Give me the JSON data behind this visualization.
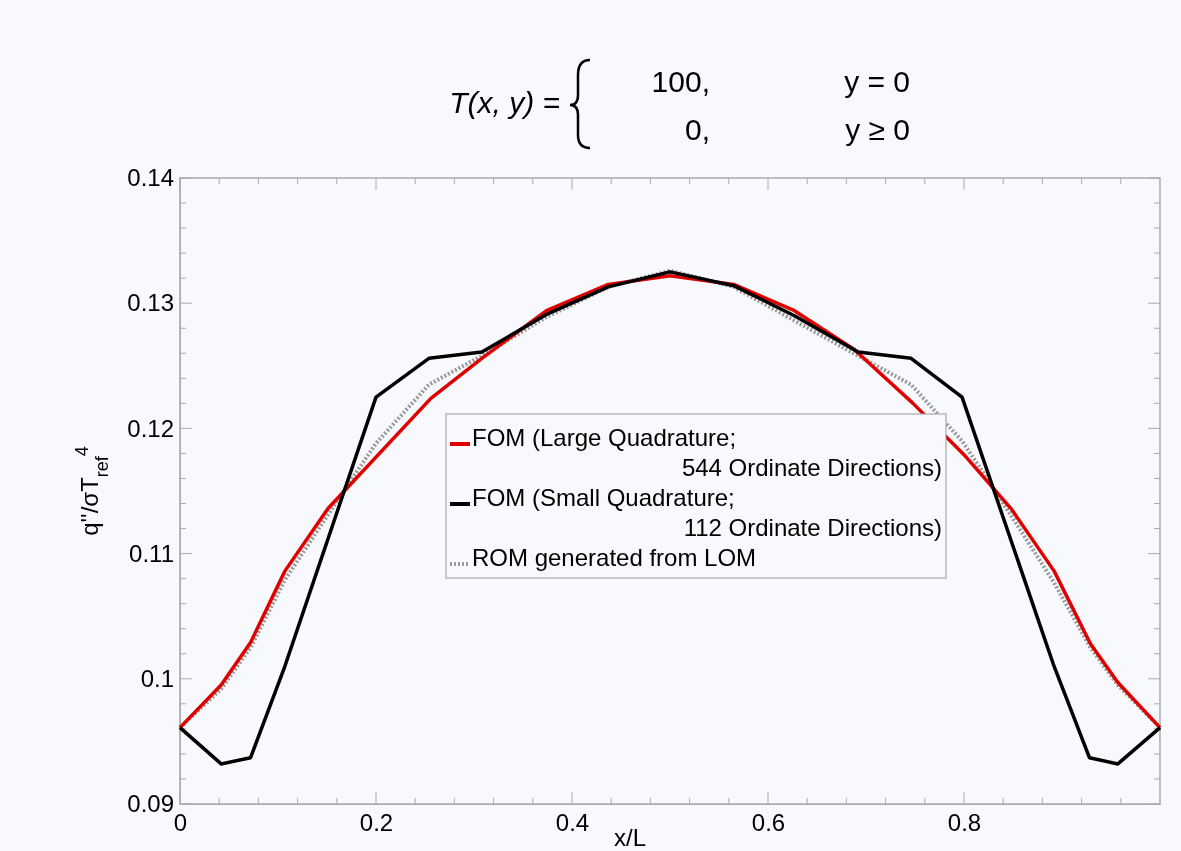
{
  "chart_data": {
    "type": "line",
    "title": "T(x, y) =",
    "annotations": [
      "100,",
      "y = 0",
      "0,",
      "y ≥ 0"
    ],
    "xlabel": "x/L",
    "ylabel": "q''/σT$_{ref}$$^{4}$",
    "xlim": [
      0,
      1
    ],
    "ylim": [
      0.09,
      0.14
    ],
    "xticks": [
      0,
      {
        "value": 0.04,
        "label": null
      },
      {
        "value": 0.08,
        "label": null
      },
      {
        "value": 0.12,
        "label": null
      },
      {
        "value": 0.16,
        "label": null
      },
      0.2,
      {
        "value": 0.24,
        "label": null
      },
      {
        "value": 0.28,
        "label": null
      },
      {
        "value": 0.32,
        "label": null
      },
      {
        "value": 0.36,
        "label": null
      },
      0.4,
      {
        "value": 0.44,
        "label": null
      },
      {
        "value": 0.48,
        "label": null
      },
      {
        "value": 0.52,
        "label": null
      },
      {
        "value": 0.56,
        "label": null
      },
      0.6,
      {
        "value": 0.64,
        "label": null
      },
      {
        "value": 0.68,
        "label": null
      },
      {
        "value": 0.72,
        "label": null
      },
      {
        "value": 0.76,
        "label": null
      },
      0.8,
      {
        "value": 0.84,
        "label": null
      },
      {
        "value": 0.88,
        "label": null
      },
      {
        "value": 0.92,
        "label": null
      },
      {
        "value": 0.96,
        "label": null
      }
    ],
    "yticks": [
      0.09,
      {
        "value": 0.092,
        "label": null
      },
      {
        "value": 0.094,
        "label": null
      },
      {
        "value": 0.096,
        "label": null
      },
      {
        "value": 0.098,
        "label": null
      },
      0.1,
      {
        "value": 0.102,
        "label": null
      },
      {
        "value": 0.104,
        "label": null
      },
      {
        "value": 0.106,
        "label": null
      },
      {
        "value": 0.108,
        "label": null
      },
      0.11,
      {
        "value": 0.112,
        "label": null
      },
      {
        "value": 0.114,
        "label": null
      },
      {
        "value": 0.116,
        "label": null
      },
      {
        "value": 0.118,
        "label": null
      },
      0.12,
      {
        "value": 0.122,
        "label": null
      },
      {
        "value": 0.124,
        "label": null
      },
      {
        "value": 0.126,
        "label": null
      },
      {
        "value": 0.128,
        "label": null
      },
      0.13,
      {
        "value": 0.132,
        "label": null
      },
      {
        "value": 0.134,
        "label": null
      },
      {
        "value": 0.136,
        "label": null
      },
      {
        "value": 0.138,
        "label": null
      },
      0.14
    ],
    "grid": false,
    "legend": "center",
    "marker": "none",
    "series": [
      {
        "name": "FOM (Large Quadrature;\n544 Ordinate Directions)",
        "color": "#e00000",
        "line_style": "solid",
        "x": [
          0,
          0.042,
          0.072,
          0.107,
          0.151,
          0.256,
          0.308,
          0.374,
          0.437,
          0.5,
          0.565,
          0.627,
          0.688,
          0.748,
          0.8,
          0.848,
          0.892,
          0.929,
          0.957,
          1
        ],
        "values": [
          0.0961,
          0.0995,
          0.1029,
          0.1086,
          0.1136,
          0.1224,
          0.1256,
          0.1294,
          0.1315,
          0.1322,
          0.1315,
          0.1294,
          0.1263,
          0.122,
          0.1179,
          0.1136,
          0.1086,
          0.1028,
          0.0997,
          0.0961
        ]
      },
      {
        "name": "FOM (Small Quadrature;\n112 Ordinate Directions)",
        "color": "#000000",
        "line_style": "solid",
        "x": [
          0,
          0.042,
          0.072,
          0.107,
          0.2,
          0.254,
          0.308,
          0.374,
          0.437,
          0.5,
          0.565,
          0.627,
          0.692,
          0.746,
          0.798,
          0.891,
          0.928,
          0.957,
          1
        ],
        "values": [
          0.0961,
          0.0932,
          0.0937,
          0.101,
          0.1225,
          0.1256,
          0.1261,
          0.1291,
          0.1313,
          0.1325,
          0.1314,
          0.129,
          0.1261,
          0.1256,
          0.1225,
          0.1012,
          0.0937,
          0.0932,
          0.0961
        ]
      },
      {
        "name": "ROM generated from LOM",
        "color": "#999999",
        "line_style": "dotted",
        "x": [
          0,
          0.042,
          0.072,
          0.107,
          0.167,
          0.2,
          0.254,
          0.308,
          0.374,
          0.437,
          0.5,
          0.565,
          0.627,
          0.692,
          0.746,
          0.798,
          0.832,
          0.891,
          0.929,
          0.957,
          1
        ],
        "values": [
          0.0961,
          0.0992,
          0.1025,
          0.1079,
          0.115,
          0.1188,
          0.1235,
          0.1258,
          0.1289,
          0.1313,
          0.1326,
          0.1313,
          0.1286,
          0.1258,
          0.1235,
          0.119,
          0.115,
          0.1078,
          0.1025,
          0.0995,
          0.0961
        ]
      }
    ]
  }
}
